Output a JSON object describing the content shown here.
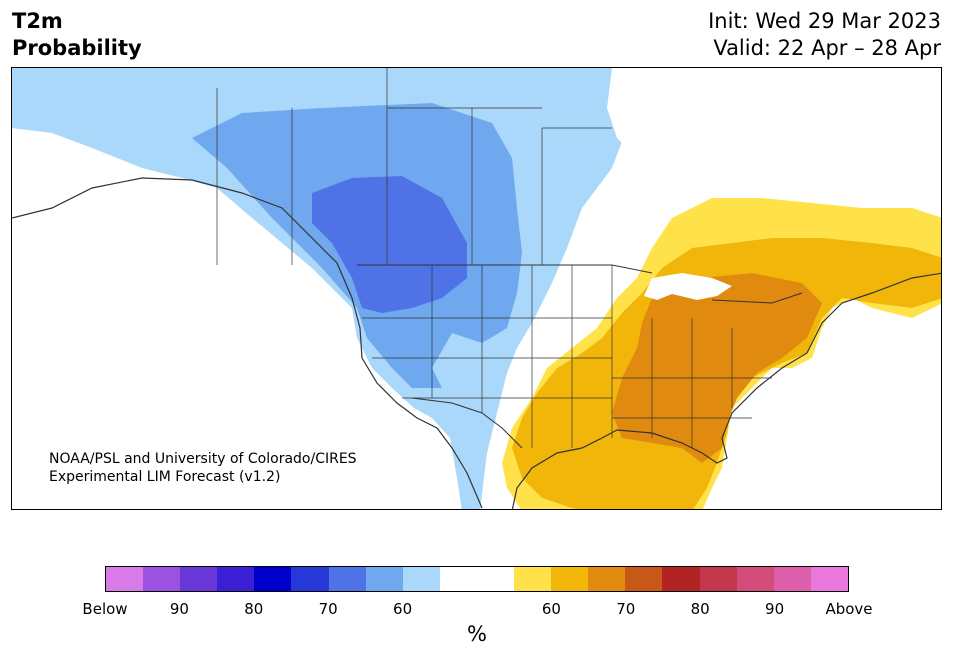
{
  "header": {
    "variable": "T2m",
    "product": "Probability",
    "init": "Init: Wed 29 Mar 2023",
    "valid": "Valid: 22 Apr – 28 Apr"
  },
  "credit": {
    "line1": "NOAA/PSL and University of Colorado/CIRES",
    "line2": "Experimental LIM Forecast (v1.2)"
  },
  "colorbar": {
    "unit": "%",
    "colors": [
      "#d87ae8",
      "#9b52e0",
      "#6a38d8",
      "#3a1fd4",
      "#0000cc",
      "#2638d8",
      "#4f72e6",
      "#6fa8ef",
      "#aad8fb",
      "#ffffff",
      "#ffffff",
      "#ffe24a",
      "#f2b60a",
      "#e08a10",
      "#c85818",
      "#b22424",
      "#c4384e",
      "#d24c7c",
      "#dd5eaa",
      "#e878dc"
    ],
    "labels": [
      "Below",
      "90",
      "80",
      "70",
      "60",
      "60",
      "70",
      "80",
      "90",
      "Above"
    ]
  },
  "map_legend": {
    "below_normal_colors": {
      "prob_50_60": "#aad8fb",
      "prob_60_70": "#6fa8ef",
      "prob_70_80": "#4f72e6"
    },
    "above_normal_colors": {
      "prob_50_60": "#ffe24a",
      "prob_60_70": "#f2b60a",
      "prob_70_80": "#e08a10"
    },
    "land_color": "#ffffff",
    "border_color": "#333333"
  }
}
